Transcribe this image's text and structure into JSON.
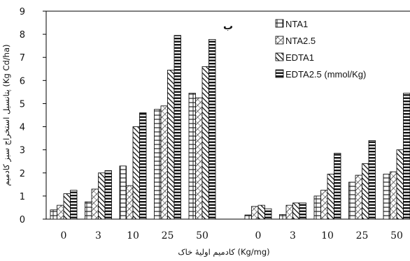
{
  "chart_data": {
    "type": "bar",
    "panel_label": "ب",
    "ylabel": "پتانسیل استخراج سبز کادمیم (Kg Cd/ha)",
    "xlabel": "کادمیم اولیهٔ خاک (Kg/mg)",
    "ylim": [
      0,
      9
    ],
    "yticks": [
      "0",
      "1",
      "2",
      "3",
      "4",
      "5",
      "6",
      "7",
      "8",
      "9"
    ],
    "grid": false,
    "legend_position": "top-right",
    "groups": [
      {
        "categories": [
          "0",
          "3",
          "10",
          "25",
          "50"
        ],
        "series": [
          {
            "name": "NTA1",
            "values": [
              0.4,
              0.75,
              2.3,
              4.75,
              5.45
            ]
          },
          {
            "name": "NTA2.5",
            "values": [
              0.6,
              1.3,
              1.45,
              4.9,
              5.25
            ]
          },
          {
            "name": "EDTA1",
            "values": [
              1.1,
              2.0,
              4.0,
              6.45,
              6.6
            ]
          },
          {
            "name": "EDTA2.5 (mmol/Kg)",
            "values": [
              1.25,
              2.1,
              4.6,
              7.95,
              7.78
            ]
          }
        ]
      },
      {
        "categories": [
          "0",
          "3",
          "10",
          "25",
          "50"
        ],
        "series": [
          {
            "name": "NTA1",
            "values": [
              0.18,
              0.2,
              1.0,
              1.6,
              1.95
            ]
          },
          {
            "name": "NTA2.5",
            "values": [
              0.55,
              0.6,
              1.25,
              1.9,
              2.05
            ]
          },
          {
            "name": "EDTA1",
            "values": [
              0.6,
              0.7,
              1.95,
              2.4,
              3.0
            ]
          },
          {
            "name": "EDTA2.5 (mmol/Kg)",
            "values": [
              0.45,
              0.7,
              2.85,
              3.4,
              5.45
            ]
          }
        ]
      }
    ]
  }
}
